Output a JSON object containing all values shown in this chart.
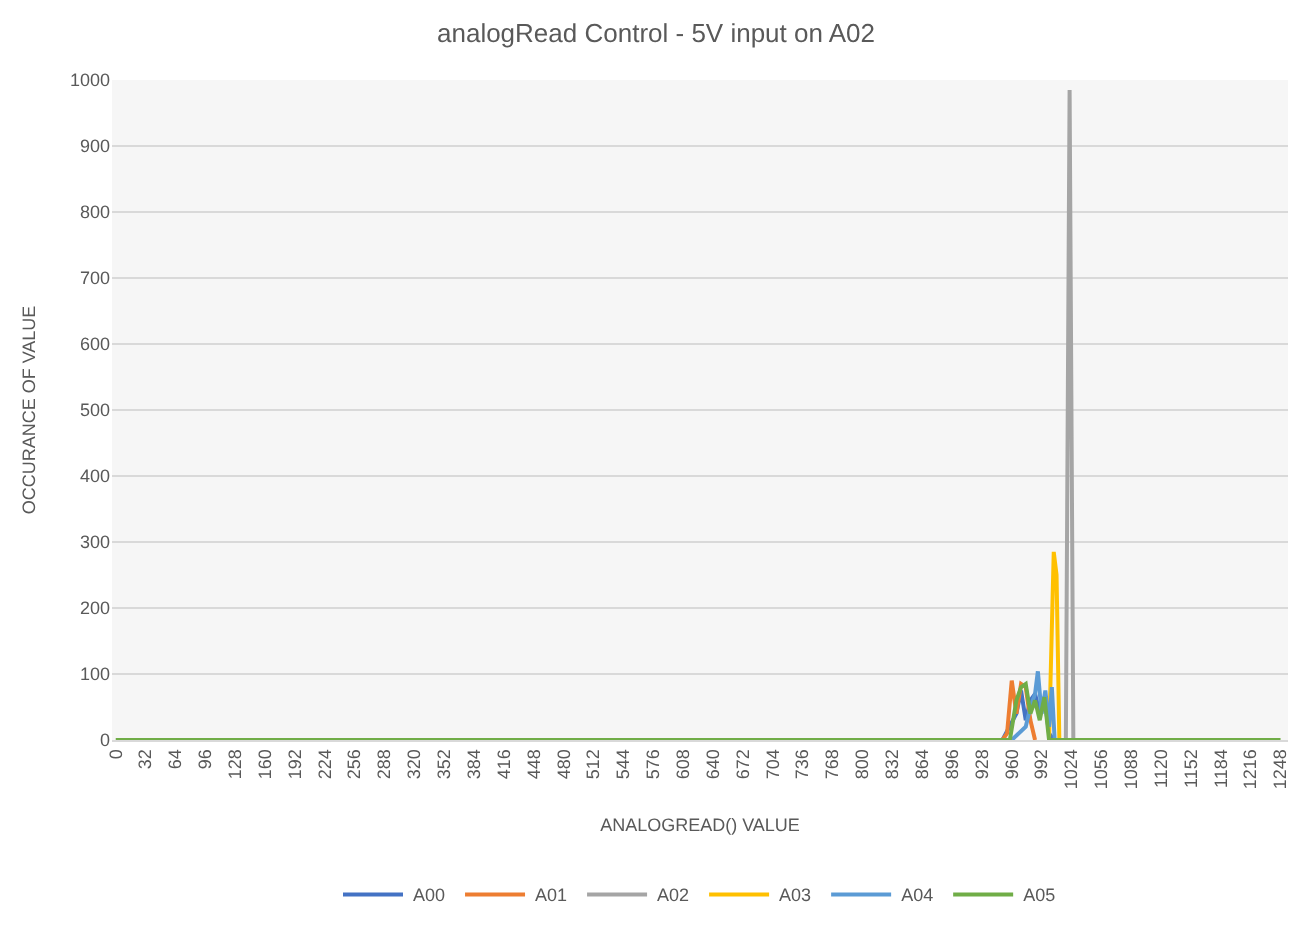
{
  "chart_data": {
    "type": "line",
    "title": "analogRead Control - 5V input on A02",
    "xlabel": "ANALOGREAD() VALUE",
    "ylabel": "OCCURANCE OF VALUE",
    "xlim": [
      -4,
      1256
    ],
    "xticks": [
      0,
      32,
      64,
      96,
      128,
      160,
      192,
      224,
      256,
      288,
      320,
      352,
      384,
      416,
      448,
      480,
      512,
      544,
      576,
      608,
      640,
      672,
      704,
      736,
      768,
      800,
      832,
      864,
      896,
      928,
      960,
      992,
      1024,
      1056,
      1088,
      1120,
      1152,
      1184,
      1216,
      1248
    ],
    "ylim": [
      0,
      1000
    ],
    "yticks": [
      0,
      100,
      200,
      300,
      400,
      500,
      600,
      700,
      800,
      900,
      1000
    ],
    "grid": "y",
    "legend": "bottom",
    "marker": "none",
    "line_style": "solid",
    "series": [
      {
        "name": "A00",
        "color": "#4472c4",
        "x": [
          950,
          965,
          970,
          975,
          980,
          985,
          990,
          995,
          1000,
          1005
        ],
        "values": [
          0,
          40,
          75,
          30,
          60,
          70,
          40,
          65,
          10,
          0
        ]
      },
      {
        "name": "A01",
        "color": "#ed7d31",
        "x": [
          950,
          955,
          960,
          965,
          970,
          975,
          980,
          985
        ],
        "values": [
          0,
          10,
          90,
          40,
          85,
          80,
          30,
          0
        ]
      },
      {
        "name": "A02",
        "color": "#a5a5a5",
        "x": [
          1018,
          1022,
          1026
        ],
        "values": [
          0,
          985,
          0
        ]
      },
      {
        "name": "A03",
        "color": "#ffc000",
        "x": [
          1000,
          1005,
          1008,
          1011
        ],
        "values": [
          0,
          285,
          250,
          0
        ]
      },
      {
        "name": "A04",
        "color": "#5b9bd5",
        "x": [
          960,
          975,
          980,
          985,
          988,
          992,
          996,
          1000,
          1003,
          1006
        ],
        "values": [
          0,
          20,
          50,
          70,
          104,
          40,
          75,
          20,
          80,
          0
        ]
      },
      {
        "name": "A05",
        "color": "#70ad47",
        "x": [
          0,
          958,
          965,
          970,
          975,
          980,
          985,
          990,
          995,
          1000,
          1248
        ],
        "values": [
          0,
          0,
          60,
          80,
          85,
          40,
          60,
          30,
          65,
          0,
          0
        ]
      }
    ]
  }
}
